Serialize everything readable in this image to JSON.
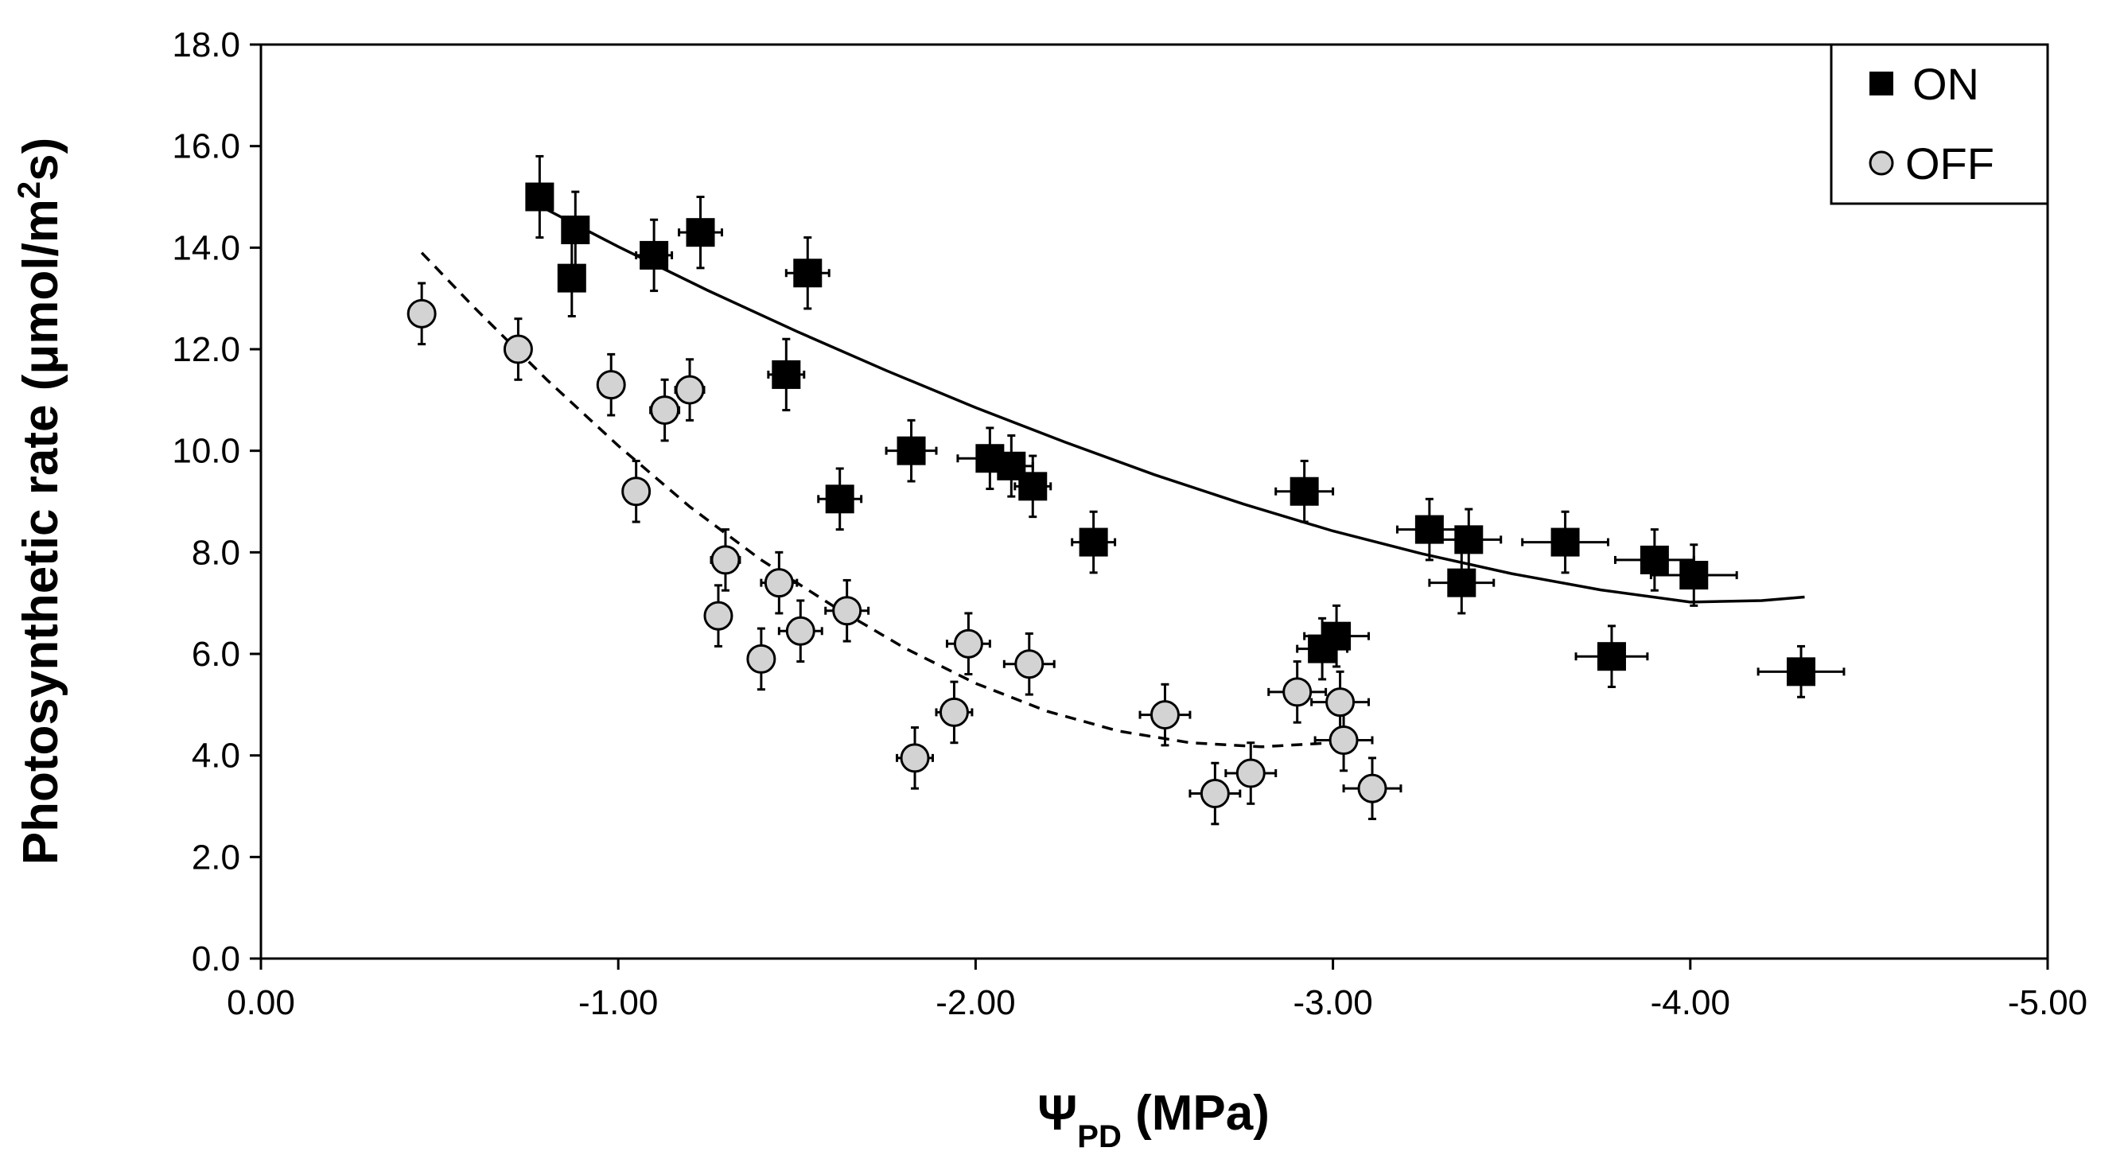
{
  "chart_data": {
    "type": "scatter",
    "title": "",
    "xlabel": {
      "symbol": "Ψ",
      "subscript": "PD",
      "rest": " (MPa)"
    },
    "ylabel": {
      "main": "Photosynthetic rate (μmol/m",
      "superscript": "2",
      "tail": "s)"
    },
    "xlim": [
      0,
      -5
    ],
    "ylim": [
      0,
      18
    ],
    "x_ticks": [
      "0.00",
      "-1.00",
      "-2.00",
      "-3.00",
      "-4.00",
      "-5.00"
    ],
    "y_ticks": [
      "0.0",
      "2.0",
      "4.0",
      "6.0",
      "8.0",
      "10.0",
      "12.0",
      "14.0",
      "16.0",
      "18.0"
    ],
    "legend": {
      "position": "top-right",
      "entries": [
        "ON",
        "OFF"
      ]
    },
    "series": [
      {
        "name": "ON",
        "marker": "square",
        "color": "#000000",
        "points": [
          {
            "x": -0.78,
            "y": 15.0,
            "xerr": 0.0,
            "yerr": 0.8
          },
          {
            "x": -0.88,
            "y": 14.35,
            "xerr": 0.0,
            "yerr": 0.75
          },
          {
            "x": -0.87,
            "y": 13.4,
            "xerr": 0.0,
            "yerr": 0.75
          },
          {
            "x": -1.1,
            "y": 13.85,
            "xerr": 0.05,
            "yerr": 0.7
          },
          {
            "x": -1.23,
            "y": 14.3,
            "xerr": 0.06,
            "yerr": 0.7
          },
          {
            "x": -1.53,
            "y": 13.5,
            "xerr": 0.06,
            "yerr": 0.7
          },
          {
            "x": -1.47,
            "y": 11.5,
            "xerr": 0.05,
            "yerr": 0.7
          },
          {
            "x": -1.82,
            "y": 10.0,
            "xerr": 0.07,
            "yerr": 0.6
          },
          {
            "x": -1.62,
            "y": 9.05,
            "xerr": 0.06,
            "yerr": 0.6
          },
          {
            "x": -2.04,
            "y": 9.85,
            "xerr": 0.09,
            "yerr": 0.6
          },
          {
            "x": -2.1,
            "y": 9.7,
            "xerr": 0.06,
            "yerr": 0.6
          },
          {
            "x": -2.16,
            "y": 9.3,
            "xerr": 0.05,
            "yerr": 0.6
          },
          {
            "x": -2.33,
            "y": 8.2,
            "xerr": 0.06,
            "yerr": 0.6
          },
          {
            "x": -2.92,
            "y": 9.2,
            "xerr": 0.08,
            "yerr": 0.6
          },
          {
            "x": -2.97,
            "y": 6.1,
            "xerr": 0.07,
            "yerr": 0.6
          },
          {
            "x": -3.01,
            "y": 6.35,
            "xerr": 0.09,
            "yerr": 0.6
          },
          {
            "x": -3.27,
            "y": 8.45,
            "xerr": 0.09,
            "yerr": 0.6
          },
          {
            "x": -3.38,
            "y": 8.25,
            "xerr": 0.09,
            "yerr": 0.6
          },
          {
            "x": -3.36,
            "y": 7.4,
            "xerr": 0.09,
            "yerr": 0.6
          },
          {
            "x": -3.65,
            "y": 8.2,
            "xerr": 0.12,
            "yerr": 0.6
          },
          {
            "x": -3.78,
            "y": 5.95,
            "xerr": 0.1,
            "yerr": 0.6
          },
          {
            "x": -3.9,
            "y": 7.85,
            "xerr": 0.11,
            "yerr": 0.6
          },
          {
            "x": -4.01,
            "y": 7.55,
            "xerr": 0.12,
            "yerr": 0.6
          },
          {
            "x": -4.31,
            "y": 5.65,
            "xerr": 0.12,
            "yerr": 0.5
          }
        ],
        "fit": {
          "style": "solid",
          "x": [
            -0.8,
            -1.0,
            -1.25,
            -1.5,
            -1.75,
            -2.0,
            -2.25,
            -2.5,
            -2.75,
            -3.0,
            -3.25,
            -3.5,
            -3.75,
            -4.0,
            -4.2,
            -4.32
          ],
          "y": [
            14.75,
            14.02,
            13.16,
            12.35,
            11.58,
            10.85,
            10.17,
            9.53,
            8.95,
            8.42,
            7.97,
            7.58,
            7.26,
            7.02,
            7.05,
            7.12
          ]
        }
      },
      {
        "name": "OFF",
        "marker": "circle",
        "color": "#d3d3d3",
        "points": [
          {
            "x": -0.45,
            "y": 12.7,
            "xerr": 0.0,
            "yerr": 0.6
          },
          {
            "x": -0.72,
            "y": 12.0,
            "xerr": 0.0,
            "yerr": 0.6
          },
          {
            "x": -0.98,
            "y": 11.3,
            "xerr": 0.0,
            "yerr": 0.6
          },
          {
            "x": -1.13,
            "y": 10.8,
            "xerr": 0.04,
            "yerr": 0.6
          },
          {
            "x": -1.2,
            "y": 11.2,
            "xerr": 0.04,
            "yerr": 0.6
          },
          {
            "x": -1.05,
            "y": 9.2,
            "xerr": 0.0,
            "yerr": 0.6
          },
          {
            "x": -1.3,
            "y": 7.85,
            "xerr": 0.04,
            "yerr": 0.6
          },
          {
            "x": -1.28,
            "y": 6.75,
            "xerr": 0.0,
            "yerr": 0.6
          },
          {
            "x": -1.4,
            "y": 5.9,
            "xerr": 0.0,
            "yerr": 0.6
          },
          {
            "x": -1.45,
            "y": 7.4,
            "xerr": 0.05,
            "yerr": 0.6
          },
          {
            "x": -1.51,
            "y": 6.45,
            "xerr": 0.06,
            "yerr": 0.6
          },
          {
            "x": -1.64,
            "y": 6.85,
            "xerr": 0.06,
            "yerr": 0.6
          },
          {
            "x": -1.83,
            "y": 3.95,
            "xerr": 0.05,
            "yerr": 0.6
          },
          {
            "x": -1.94,
            "y": 4.85,
            "xerr": 0.05,
            "yerr": 0.6
          },
          {
            "x": -1.98,
            "y": 6.2,
            "xerr": 0.06,
            "yerr": 0.6
          },
          {
            "x": -2.15,
            "y": 5.8,
            "xerr": 0.07,
            "yerr": 0.6
          },
          {
            "x": -2.53,
            "y": 4.8,
            "xerr": 0.07,
            "yerr": 0.6
          },
          {
            "x": -2.67,
            "y": 3.25,
            "xerr": 0.07,
            "yerr": 0.6
          },
          {
            "x": -2.77,
            "y": 3.65,
            "xerr": 0.07,
            "yerr": 0.6
          },
          {
            "x": -2.9,
            "y": 5.25,
            "xerr": 0.08,
            "yerr": 0.6
          },
          {
            "x": -3.02,
            "y": 5.05,
            "xerr": 0.08,
            "yerr": 0.6
          },
          {
            "x": -3.03,
            "y": 4.3,
            "xerr": 0.08,
            "yerr": 0.6
          },
          {
            "x": -3.11,
            "y": 3.35,
            "xerr": 0.08,
            "yerr": 0.6
          }
        ],
        "fit": {
          "style": "dashed",
          "x": [
            -0.45,
            -0.6,
            -0.8,
            -1.0,
            -1.2,
            -1.4,
            -1.6,
            -1.8,
            -2.0,
            -2.2,
            -2.4,
            -2.6,
            -2.8,
            -3.0
          ],
          "y": [
            13.9,
            12.8,
            11.4,
            10.1,
            8.9,
            7.85,
            6.95,
            6.12,
            5.42,
            4.87,
            4.48,
            4.25,
            4.17,
            4.25
          ]
        }
      }
    ]
  }
}
